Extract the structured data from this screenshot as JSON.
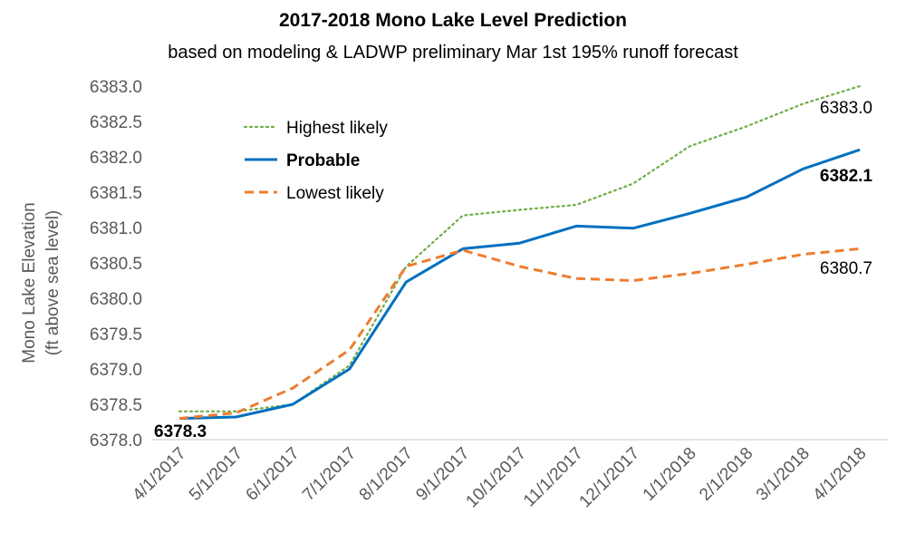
{
  "chart_data": {
    "type": "line",
    "title": "2017-2018 Mono Lake Level Prediction",
    "subtitle": "based on modeling & LADWP preliminary Mar 1st 195% runoff forecast",
    "ylabel_line1": "Mono Lake Elevation",
    "ylabel_line2": "(ft above sea level)",
    "xlabel": "",
    "ylim": [
      6378.0,
      6383.0
    ],
    "yticks": [
      "6378.0",
      "6378.5",
      "6379.0",
      "6379.5",
      "6380.0",
      "6380.5",
      "6381.0",
      "6381.5",
      "6382.0",
      "6382.5",
      "6383.0"
    ],
    "categories": [
      "4/1/2017",
      "5/1/2017",
      "6/1/2017",
      "7/1/2017",
      "8/1/2017",
      "9/1/2017",
      "10/1/2017",
      "11/1/2017",
      "12/1/2017",
      "1/1/2018",
      "2/1/2018",
      "3/1/2018",
      "4/1/2018"
    ],
    "series": [
      {
        "name": "Highest likely",
        "color": "#70AD47",
        "style": "dotted",
        "values": [
          6378.4,
          6378.4,
          6378.5,
          6379.05,
          6380.45,
          6381.17,
          6381.25,
          6381.32,
          6381.62,
          6382.15,
          6382.43,
          6382.75,
          6383.0
        ]
      },
      {
        "name": "Probable",
        "color": "#0070C0",
        "style": "solid",
        "values": [
          6378.3,
          6378.32,
          6378.5,
          6379.0,
          6380.23,
          6380.7,
          6380.78,
          6381.02,
          6380.99,
          6381.2,
          6381.43,
          6381.83,
          6382.1
        ]
      },
      {
        "name": "Lowest likely",
        "color": "#ED7D31",
        "style": "dashed",
        "values": [
          6378.3,
          6378.38,
          6378.73,
          6379.27,
          6380.45,
          6380.68,
          6380.45,
          6380.28,
          6380.25,
          6380.35,
          6380.48,
          6380.62,
          6380.7
        ]
      }
    ],
    "annotations": [
      {
        "text": "6383.0",
        "series": "Highest likely",
        "bold": false
      },
      {
        "text": "6382.1",
        "series": "Probable",
        "bold": true
      },
      {
        "text": "6380.7",
        "series": "Lowest likely",
        "bold": false
      },
      {
        "text": "6378.3",
        "series": "Probable",
        "bold": true
      }
    ],
    "legend_position": "top-left",
    "grid": false
  }
}
